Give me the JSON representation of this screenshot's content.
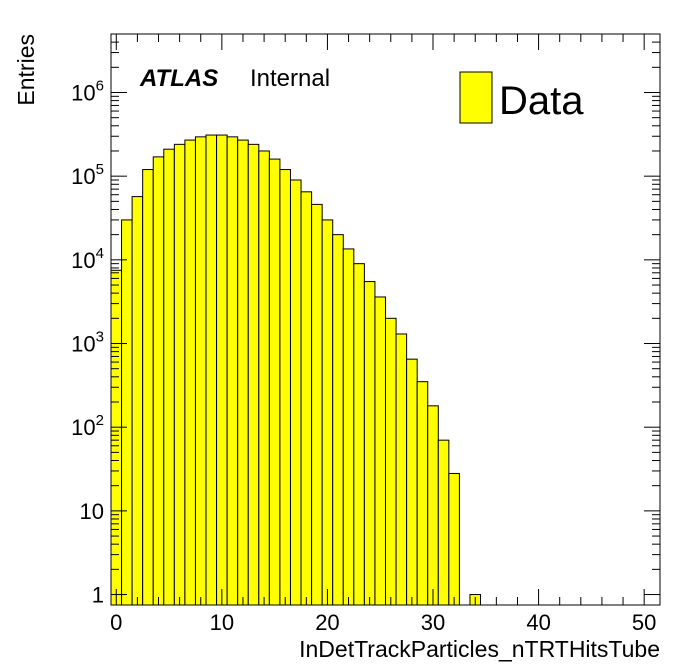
{
  "chart_data": {
    "type": "bar",
    "title": "",
    "xlabel": "InDetTrackParticles_nTRTHitsTube",
    "ylabel": "Entries",
    "x_range": [
      -0.5,
      51.5
    ],
    "y_range": [
      0.75,
      5000000
    ],
    "y_scale": "log",
    "bin_width": 1,
    "bin_lows": [
      -0.5,
      0.5,
      1.5,
      2.5,
      3.5,
      4.5,
      5.5,
      6.5,
      7.5,
      8.5,
      9.5,
      10.5,
      11.5,
      12.5,
      13.5,
      14.5,
      15.5,
      16.5,
      17.5,
      18.5,
      19.5,
      20.5,
      21.5,
      22.5,
      23.5,
      24.5,
      25.5,
      26.5,
      27.5,
      28.5,
      29.5,
      30.5,
      31.5,
      32.5,
      33.5
    ],
    "values": [
      7500,
      30000,
      57000,
      120000,
      170000,
      210000,
      240000,
      270000,
      295000,
      310000,
      310000,
      295000,
      270000,
      240000,
      200000,
      160000,
      120000,
      90000,
      65000,
      46000,
      30000,
      20000,
      13500,
      9000,
      5500,
      3600,
      2000,
      1300,
      650,
      350,
      180,
      70,
      28,
      0,
      1
    ],
    "x_ticks": [
      0,
      10,
      20,
      30,
      40,
      50
    ],
    "y_ticks": [
      {
        "value": 1,
        "base": "1",
        "exp": ""
      },
      {
        "value": 10,
        "base": "10",
        "exp": ""
      },
      {
        "value": 100,
        "base": "10",
        "exp": "2"
      },
      {
        "value": 1000,
        "base": "10",
        "exp": "3"
      },
      {
        "value": 10000,
        "base": "10",
        "exp": "4"
      },
      {
        "value": 100000,
        "base": "10",
        "exp": "5"
      },
      {
        "value": 1000000,
        "base": "10",
        "exp": "6"
      }
    ],
    "legend": {
      "label": "Data",
      "position": "top-right"
    },
    "fill_color": "#ffff00",
    "line_color": "#000000",
    "annotation": {
      "experiment": "ATLAS",
      "status": "Internal"
    }
  }
}
